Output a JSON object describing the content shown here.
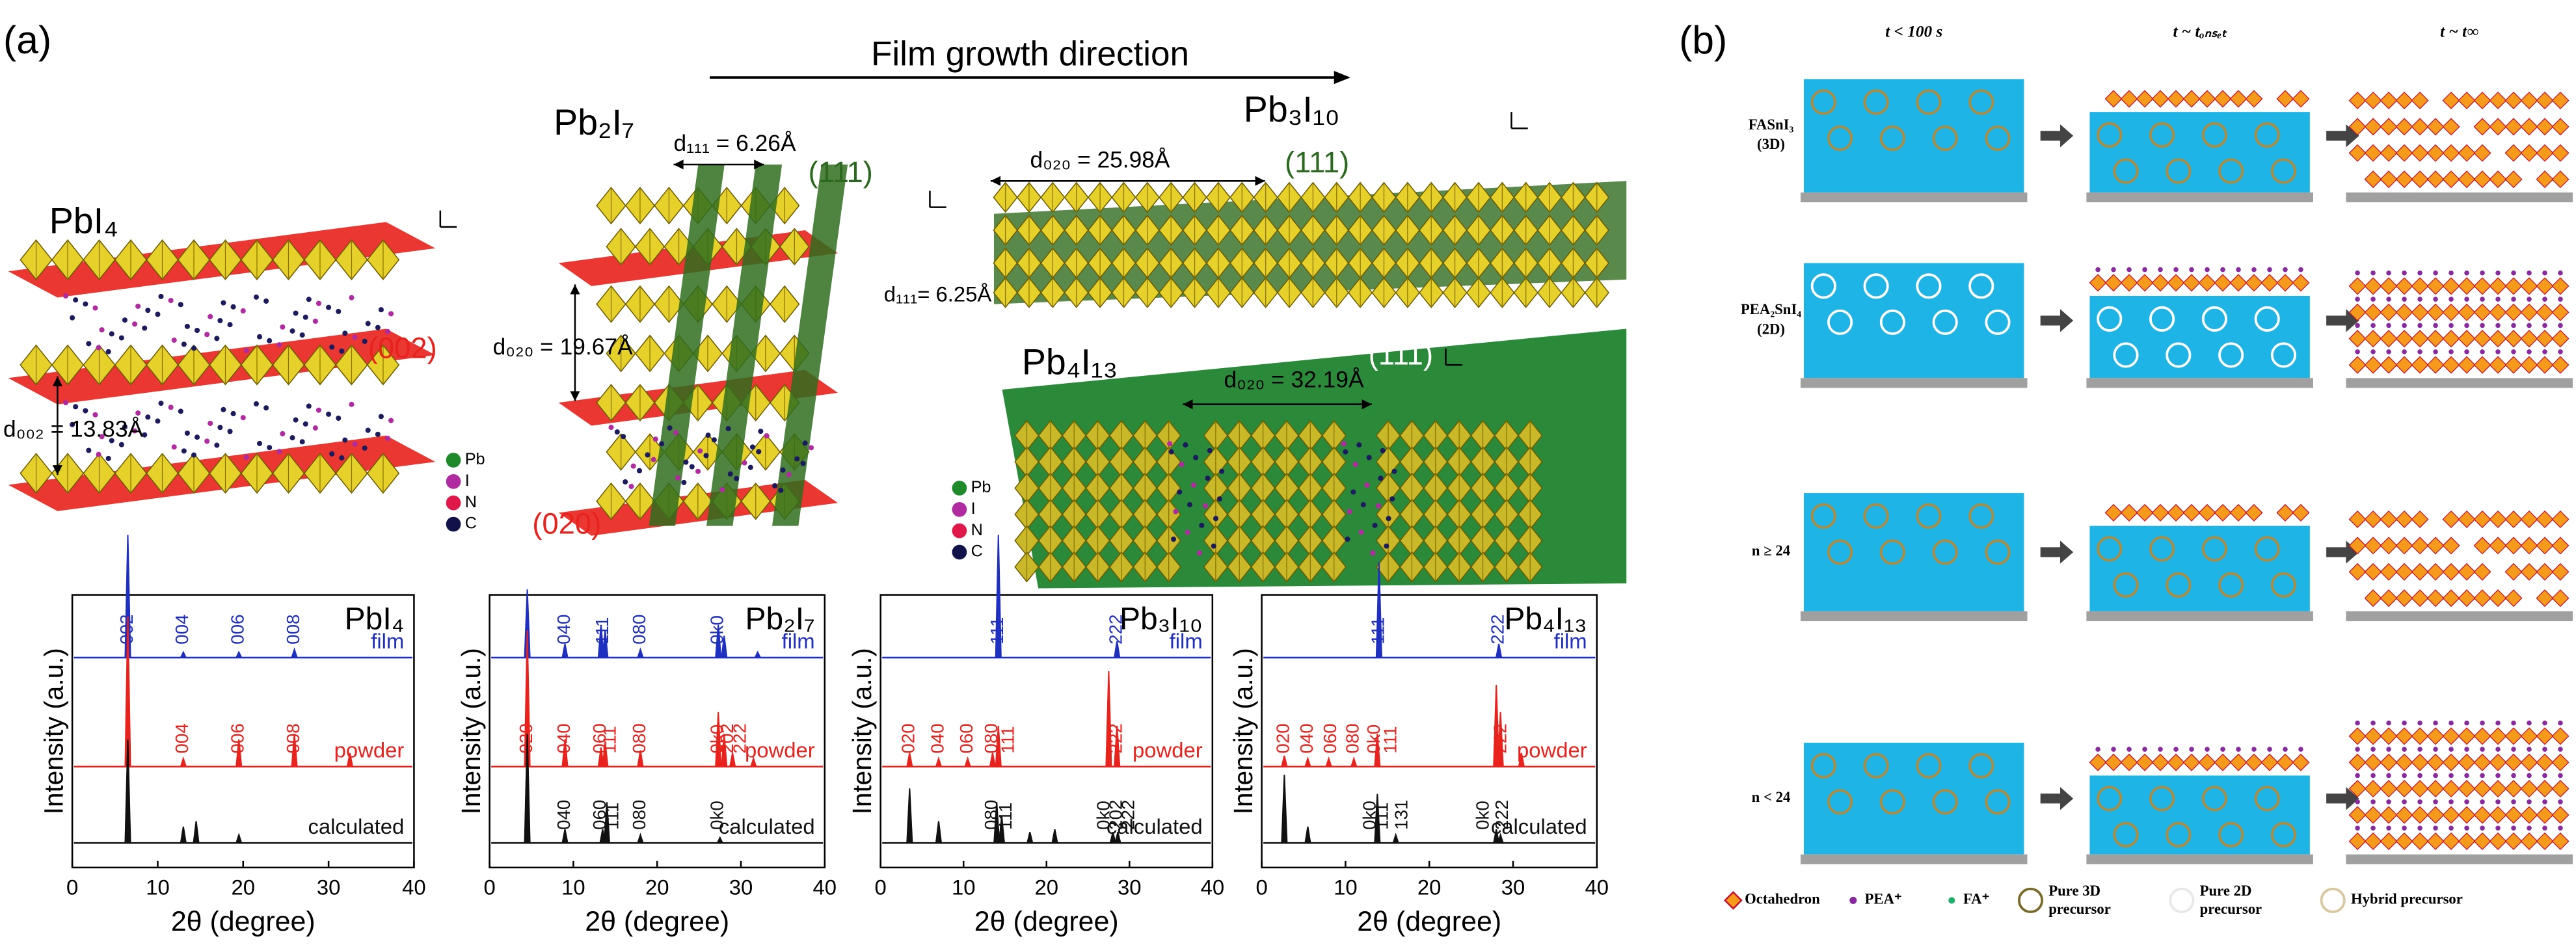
{
  "panel_labels": [
    "(a)",
    "(b)"
  ],
  "panel_a": {
    "growth_direction": "Film growth direction",
    "structures": [
      {
        "formula": "PbI₄",
        "spacings": [
          "d₀₀₂ = 13.83Å"
        ],
        "planes": [
          "(002)"
        ]
      },
      {
        "formula": "Pb₂I₇",
        "spacings": [
          "d₁₁₁ = 6.26Å",
          "d₀₂₀ = 19.67Å"
        ],
        "planes": [
          "(111)",
          "(020)"
        ]
      },
      {
        "formula": "Pb₃I₁₀",
        "spacings": [
          "d₀₂₀ = 25.98Å",
          "d₁₁₁= 6.25Å"
        ],
        "planes": [
          "(111)"
        ]
      },
      {
        "formula": "Pb₄I₁₃",
        "spacings": [
          "d₀₂₀ = 32.19Å"
        ],
        "planes": [
          "(111)"
        ]
      }
    ],
    "legend": [
      "Pb",
      "I",
      "N",
      "C"
    ]
  },
  "chart_data": [
    {
      "type": "line",
      "title": "PbI₄",
      "xlabel": "2θ (degree)",
      "ylabel": "Intensity (a.u.)",
      "xlim": [
        0,
        40
      ],
      "xticks": [
        0,
        10,
        20,
        30,
        40
      ],
      "ylim": [
        0,
        1
      ],
      "series": [
        {
          "name": "film",
          "color": "#1f2fbf",
          "x": [
            6.5,
            13,
            19.5,
            26
          ],
          "values": [
            0.45,
            0.02,
            0.02,
            0.03
          ],
          "peak_labels": [
            {
              "text": "002",
              "x": 6.5
            },
            {
              "text": "004",
              "x": 13
            },
            {
              "text": "006",
              "x": 19.5
            },
            {
              "text": "008",
              "x": 26
            }
          ]
        },
        {
          "name": "powder",
          "color": "#e8221c",
          "x": [
            6.5,
            13,
            19.5,
            26,
            32.5
          ],
          "values": [
            0.55,
            0.03,
            0.1,
            0.12,
            0.05
          ],
          "peak_labels": [
            {
              "text": "004",
              "x": 13
            },
            {
              "text": "006",
              "x": 19.5
            },
            {
              "text": "008",
              "x": 26
            }
          ]
        },
        {
          "name": "calculated",
          "color": "#111111",
          "x": [
            6.5,
            13,
            14.5,
            19.5
          ],
          "values": [
            0.38,
            0.06,
            0.08,
            0.03
          ],
          "peak_labels": []
        }
      ]
    },
    {
      "type": "line",
      "title": "Pb₂I₇",
      "xlabel": "2θ (degree)",
      "ylabel": "Intensity (a.u.)",
      "xlim": [
        0,
        40
      ],
      "xticks": [
        0,
        10,
        20,
        30,
        40
      ],
      "ylim": [
        0,
        1
      ],
      "series": [
        {
          "name": "film",
          "color": "#1f2fbf",
          "x": [
            4.5,
            9,
            13.3,
            13.8,
            18,
            27.3,
            28,
            32
          ],
          "values": [
            0.25,
            0.05,
            0.12,
            0.1,
            0.03,
            0.12,
            0.08,
            0.02
          ],
          "peak_labels": [
            {
              "text": "040",
              "x": 9
            },
            {
              "text": "111",
              "x": 13.6
            },
            {
              "text": "080",
              "x": 18
            },
            {
              "text": "0k0",
              "x": 27.3
            }
          ]
        },
        {
          "name": "powder",
          "color": "#e8221c",
          "x": [
            4.5,
            9,
            13.3,
            13.8,
            18,
            27.3,
            28,
            29,
            31.5
          ],
          "values": [
            0.5,
            0.1,
            0.07,
            0.09,
            0.06,
            0.2,
            0.12,
            0.05,
            0.03
          ],
          "peak_labels": [
            {
              "text": "020",
              "x": 4.5
            },
            {
              "text": "040",
              "x": 9
            },
            {
              "text": "060",
              "x": 13.3
            },
            {
              "text": "111",
              "x": 14.5
            },
            {
              "text": "080",
              "x": 18
            },
            {
              "text": "0k0",
              "x": 27.3
            },
            {
              "text": "202",
              "x": 28.5
            },
            {
              "text": "222",
              "x": 30
            }
          ]
        },
        {
          "name": "calculated",
          "color": "#111111",
          "x": [
            4.5,
            9,
            13.5,
            14,
            18,
            27.5
          ],
          "values": [
            0.4,
            0.05,
            0.05,
            0.15,
            0.03,
            0.02
          ],
          "peak_labels": [
            {
              "text": "040",
              "x": 9
            },
            {
              "text": "060",
              "x": 13.3
            },
            {
              "text": "111",
              "x": 14.8
            },
            {
              "text": "080",
              "x": 18
            },
            {
              "text": "0k0",
              "x": 27.3
            }
          ]
        }
      ]
    },
    {
      "type": "line",
      "title": "Pb₃I₁₀",
      "xlabel": "2θ (degree)",
      "ylabel": "Intensity (a.u.)",
      "xlim": [
        0,
        40
      ],
      "xticks": [
        0,
        10,
        20,
        30,
        40
      ],
      "ylim": [
        0,
        1
      ],
      "series": [
        {
          "name": "film",
          "color": "#1f2fbf",
          "x": [
            14.2,
            28.5
          ],
          "values": [
            0.45,
            0.06
          ],
          "peak_labels": [
            {
              "text": "111",
              "x": 14.2
            },
            {
              "text": "222",
              "x": 28.5
            }
          ]
        },
        {
          "name": "powder",
          "color": "#e8221c",
          "x": [
            3.5,
            7,
            10.5,
            13.5,
            14.2,
            27.5,
            28.5
          ],
          "values": [
            0.05,
            0.03,
            0.03,
            0.05,
            0.15,
            0.35,
            0.15
          ],
          "peak_labels": [
            {
              "text": "020",
              "x": 3.5
            },
            {
              "text": "040",
              "x": 7
            },
            {
              "text": "060",
              "x": 10.5
            },
            {
              "text": "080",
              "x": 13.5
            },
            {
              "text": "111",
              "x": 15.5
            },
            {
              "text": "222",
              "x": 28.5
            }
          ]
        },
        {
          "name": "calculated",
          "color": "#111111",
          "x": [
            3.5,
            7,
            14,
            14.6,
            18,
            21,
            28,
            28.6
          ],
          "values": [
            0.2,
            0.08,
            0.15,
            0.1,
            0.04,
            0.05,
            0.04,
            0.04
          ],
          "peak_labels": [
            {
              "text": "080",
              "x": 13.5
            },
            {
              "text": "111",
              "x": 15.2
            },
            {
              "text": "0k0",
              "x": 27
            },
            {
              "text": "202",
              "x": 28.5
            },
            {
              "text": "222",
              "x": 30
            }
          ]
        }
      ]
    },
    {
      "type": "line",
      "title": "Pb₄I₁₃",
      "xlabel": "2θ (degree)",
      "ylabel": "Intensity (a.u.)",
      "xlim": [
        0,
        40
      ],
      "xticks": [
        0,
        10,
        20,
        30,
        40
      ],
      "ylim": [
        0,
        1
      ],
      "series": [
        {
          "name": "film",
          "color": "#1f2fbf",
          "x": [
            14,
            28.3
          ],
          "values": [
            0.35,
            0.05
          ],
          "peak_labels": [
            {
              "text": "111",
              "x": 14
            },
            {
              "text": "222",
              "x": 28.3
            }
          ]
        },
        {
          "name": "powder",
          "color": "#e8221c",
          "x": [
            2.7,
            5.5,
            8,
            11,
            13.8,
            28,
            28.5,
            31
          ],
          "values": [
            0.04,
            0.03,
            0.03,
            0.03,
            0.12,
            0.3,
            0.2,
            0.05
          ],
          "peak_labels": [
            {
              "text": "020",
              "x": 2.7
            },
            {
              "text": "040",
              "x": 5.5
            },
            {
              "text": "060",
              "x": 8.3
            },
            {
              "text": "080",
              "x": 11
            },
            {
              "text": "0k0",
              "x": 13.5
            },
            {
              "text": "111",
              "x": 15.5
            },
            {
              "text": "222",
              "x": 28.6
            }
          ]
        },
        {
          "name": "calculated",
          "color": "#111111",
          "x": [
            2.7,
            5.5,
            13.8,
            16,
            28,
            28.5
          ],
          "values": [
            0.25,
            0.06,
            0.18,
            0.03,
            0.05,
            0.03
          ],
          "peak_labels": [
            {
              "text": "0k0",
              "x": 13
            },
            {
              "text": "111",
              "x": 14.5
            },
            {
              "text": "131",
              "x": 16.8
            },
            {
              "text": "0k0",
              "x": 26.5
            },
            {
              "text": "222",
              "x": 28.8
            }
          ]
        }
      ]
    }
  ],
  "panel_b": {
    "columns": [
      "t < 100 s",
      "t ~ tₒₙₛₑₜ",
      "t ~ t∞"
    ],
    "rows": [
      [
        "FASnI₃",
        "(3D)"
      ],
      [
        "PEA₂SnI₄",
        "(2D)"
      ],
      [
        "n ≥ 24"
      ],
      [
        "n < 24"
      ]
    ],
    "legend": [
      "Octahedron",
      "PEA⁺",
      "FA⁺",
      [
        "Pure 3D",
        "precursor"
      ],
      [
        "Pure 2D",
        "precursor"
      ],
      "Hybrid precursor"
    ]
  }
}
